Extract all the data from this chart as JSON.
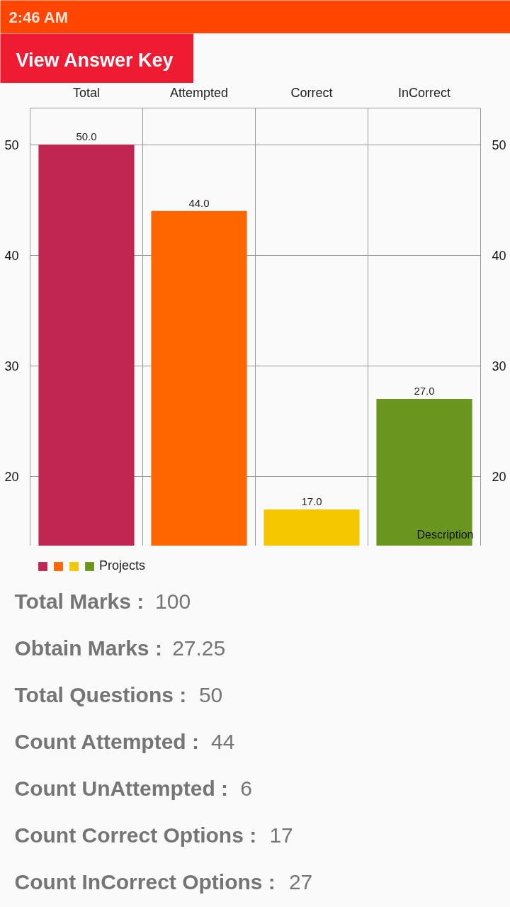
{
  "chart_data": {
    "type": "bar",
    "categories": [
      "Total",
      "Attempted",
      "Correct",
      "InCorrect"
    ],
    "series": [
      {
        "name": "Projects",
        "colors": [
          "#c12552",
          "#ff6600",
          "#f5c700",
          "#6a961f"
        ],
        "values": [
          50,
          44,
          17,
          27
        ],
        "value_labels": [
          "50.0",
          "44.0",
          "17.0",
          "27.0"
        ]
      }
    ],
    "ylim": [
      13.7,
      53.3
    ],
    "yticks": [
      20,
      30,
      40,
      50
    ],
    "y2lim": [
      13.7,
      53.3
    ],
    "y2ticks": [
      20,
      30,
      40,
      50
    ],
    "grid": true,
    "legend": "bottom left",
    "annotations": [
      "2:46 AM",
      "View Answer Key",
      "Description",
      "Total Marks : 100",
      "Obtain Marks : 27.25",
      "Total Questions : 50",
      "Count Attempted : 44",
      "Count UnAttempted : 6",
      "Count Correct Options : 17",
      "Count InCorrect Options : 27"
    ]
  }
}
